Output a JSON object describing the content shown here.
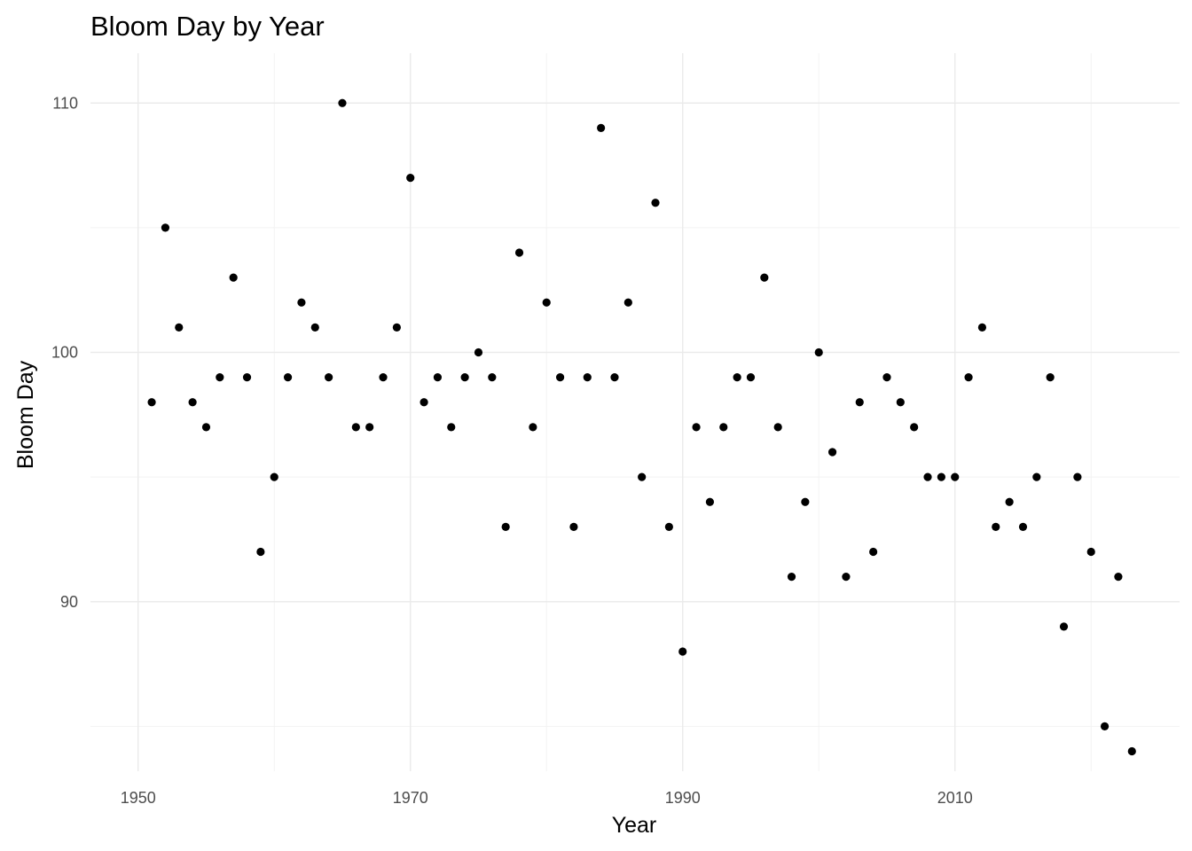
{
  "chart_data": {
    "type": "scatter",
    "title": "Bloom Day by Year",
    "xlabel": "Year",
    "ylabel": "Bloom Day",
    "xlim": [
      1946.5,
      2026.5
    ],
    "ylim": [
      83.2,
      112
    ],
    "x_major_ticks": [
      1950,
      1970,
      1990,
      2010
    ],
    "x_minor_ticks": [
      1960,
      1980,
      2000,
      2020
    ],
    "y_major_ticks": [
      90,
      100,
      110
    ],
    "y_minor_ticks": [
      85,
      95,
      105
    ],
    "grid": true,
    "legend": "none",
    "point_color": "#000000",
    "x": [
      1951,
      1952,
      1953,
      1954,
      1955,
      1956,
      1957,
      1958,
      1959,
      1960,
      1961,
      1962,
      1963,
      1964,
      1965,
      1966,
      1967,
      1968,
      1969,
      1970,
      1971,
      1972,
      1973,
      1974,
      1975,
      1976,
      1977,
      1978,
      1979,
      1980,
      1981,
      1982,
      1983,
      1984,
      1985,
      1986,
      1987,
      1988,
      1989,
      1990,
      1991,
      1992,
      1993,
      1994,
      1995,
      1996,
      1997,
      1998,
      1999,
      2000,
      2001,
      2002,
      2003,
      2004,
      2005,
      2006,
      2007,
      2008,
      2009,
      2010,
      2011,
      2012,
      2013,
      2014,
      2015,
      2016,
      2017,
      2018,
      2019,
      2020,
      2021,
      2022,
      2023
    ],
    "y": [
      98,
      105,
      101,
      98,
      97,
      99,
      103,
      99,
      92,
      95,
      99,
      102,
      101,
      99,
      110,
      97,
      97,
      99,
      101,
      107,
      98,
      99,
      97,
      99,
      100,
      99,
      93,
      104,
      97,
      102,
      99,
      93,
      99,
      109,
      99,
      102,
      95,
      106,
      93,
      88,
      97,
      94,
      97,
      99,
      99,
      103,
      97,
      91,
      94,
      100,
      96,
      91,
      98,
      92,
      99,
      98,
      97,
      95,
      95,
      95,
      99,
      101,
      93,
      94,
      93,
      95,
      99,
      89,
      95,
      92,
      85,
      91,
      84
    ]
  }
}
